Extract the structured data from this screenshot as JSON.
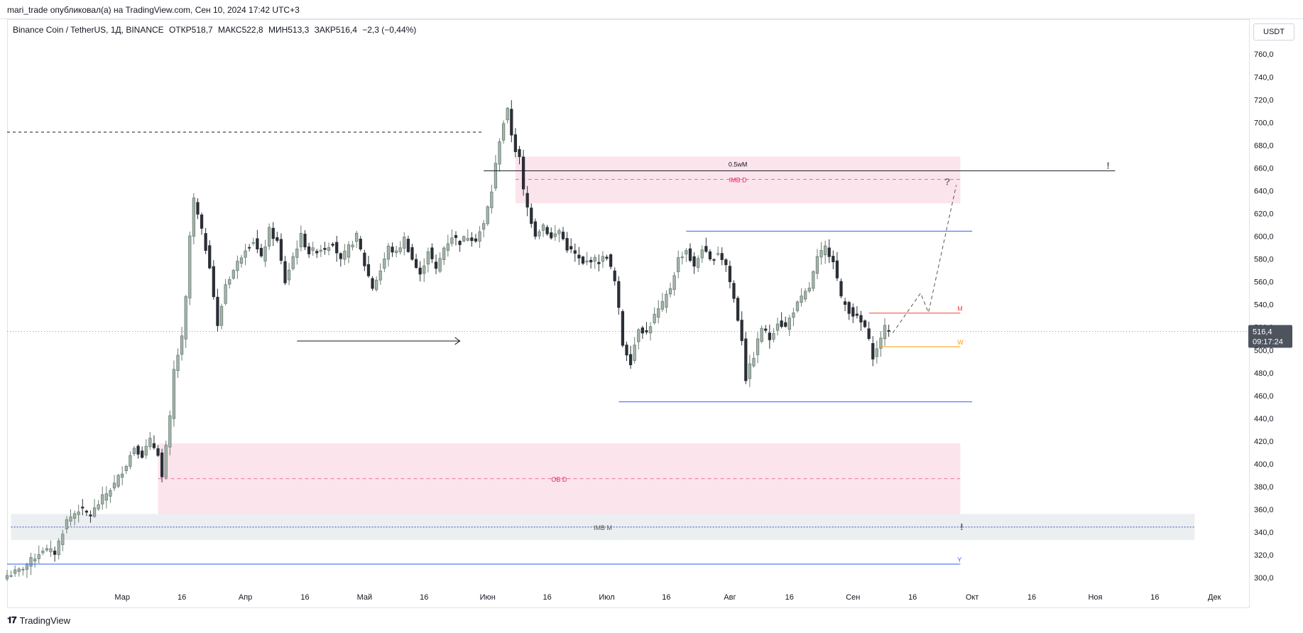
{
  "header": {
    "published": "mari_trade опубликовал(а) на TradingView.com, Сен 10, 2024 17:42 UTC+3"
  },
  "legend": {
    "symbol": "Binance Coin / TetherUS, 1Д, BINANCE",
    "open": "ОТКР518,7",
    "high": "МАКС522,8",
    "low": "МИН513,3",
    "close": "ЗАКР516,4",
    "change": "−2,3 (−0,44%)"
  },
  "currency": "USDT",
  "price_label": {
    "value": "516,4",
    "timer": "09:17:24"
  },
  "footer": {
    "brand": "TradingView",
    "logo": "tradingview-logo"
  },
  "colors": {
    "up": "#6a7d73",
    "down": "#2b2f36",
    "pink_zone": "#fce4ec",
    "pink_text": "#e91e63",
    "grey_zone": "#eceff1",
    "blue_line": "#2962ff",
    "red_line": "#f44336",
    "orange_line": "#ff9800"
  },
  "chart_data": {
    "type": "candlestick",
    "y_axis": {
      "range": [
        292,
        767
      ],
      "ticks": [
        300,
        320,
        340,
        360,
        380,
        400,
        420,
        440,
        460,
        480,
        500,
        520,
        540,
        560,
        580,
        600,
        620,
        640,
        660,
        680,
        700,
        720,
        740,
        760
      ],
      "tick_labels": [
        "300,0",
        "320,0",
        "340,0",
        "360,0",
        "380,0",
        "400,0",
        "420,0",
        "440,0",
        "460,0",
        "480,0",
        "500,0",
        "520,0",
        "540,0",
        "560,0",
        "580,0",
        "600,0",
        "620,0",
        "640,0",
        "660,0",
        "680,0",
        "700,0",
        "720,0",
        "740,0",
        "760,0"
      ]
    },
    "x_axis": {
      "start": "2024-02-01",
      "end": "2024-12-09",
      "ticks": [
        {
          "date": "2024-03-01",
          "label": "Мар"
        },
        {
          "date": "2024-03-16",
          "label": "16"
        },
        {
          "date": "2024-04-01",
          "label": "Апр"
        },
        {
          "date": "2024-04-16",
          "label": "16"
        },
        {
          "date": "2024-05-01",
          "label": "Май"
        },
        {
          "date": "2024-05-16",
          "label": "16"
        },
        {
          "date": "2024-06-01",
          "label": "Июн"
        },
        {
          "date": "2024-06-16",
          "label": "16"
        },
        {
          "date": "2024-07-01",
          "label": "Июл"
        },
        {
          "date": "2024-07-16",
          "label": "16"
        },
        {
          "date": "2024-08-01",
          "label": "Авг"
        },
        {
          "date": "2024-08-16",
          "label": "16"
        },
        {
          "date": "2024-09-01",
          "label": "Сен"
        },
        {
          "date": "2024-09-16",
          "label": "16"
        },
        {
          "date": "2024-10-01",
          "label": "Окт"
        },
        {
          "date": "2024-10-16",
          "label": "16"
        },
        {
          "date": "2024-11-01",
          "label": "Ноя"
        },
        {
          "date": "2024-11-16",
          "label": "16"
        },
        {
          "date": "2024-12-01",
          "label": "Дек"
        }
      ]
    },
    "last_price": 516.4,
    "close_path": [
      [
        "2024-02-01",
        302
      ],
      [
        "2024-02-04",
        306
      ],
      [
        "2024-02-07",
        315
      ],
      [
        "2024-02-10",
        325
      ],
      [
        "2024-02-13",
        322
      ],
      [
        "2024-02-16",
        350
      ],
      [
        "2024-02-19",
        360
      ],
      [
        "2024-02-22",
        355
      ],
      [
        "2024-02-25",
        370
      ],
      [
        "2024-02-28",
        382
      ],
      [
        "2024-03-02",
        400
      ],
      [
        "2024-03-04",
        415
      ],
      [
        "2024-03-06",
        408
      ],
      [
        "2024-03-08",
        420
      ],
      [
        "2024-03-10",
        410
      ],
      [
        "2024-03-11",
        388
      ],
      [
        "2024-03-13",
        440
      ],
      [
        "2024-03-14",
        482
      ],
      [
        "2024-03-16",
        510
      ],
      [
        "2024-03-17",
        545
      ],
      [
        "2024-03-18",
        600
      ],
      [
        "2024-03-19",
        632
      ],
      [
        "2024-03-21",
        604
      ],
      [
        "2024-03-23",
        575
      ],
      [
        "2024-03-25",
        520
      ],
      [
        "2024-03-27",
        558
      ],
      [
        "2024-03-29",
        570
      ],
      [
        "2024-04-01",
        590
      ],
      [
        "2024-04-03",
        596
      ],
      [
        "2024-04-05",
        580
      ],
      [
        "2024-04-07",
        605
      ],
      [
        "2024-04-09",
        595
      ],
      [
        "2024-04-11",
        560
      ],
      [
        "2024-04-13",
        582
      ],
      [
        "2024-04-15",
        600
      ],
      [
        "2024-04-17",
        586
      ],
      [
        "2024-04-19",
        588
      ],
      [
        "2024-04-21",
        590
      ],
      [
        "2024-04-23",
        595
      ],
      [
        "2024-04-25",
        578
      ],
      [
        "2024-04-27",
        590
      ],
      [
        "2024-04-29",
        600
      ],
      [
        "2024-05-01",
        575
      ],
      [
        "2024-05-03",
        555
      ],
      [
        "2024-05-05",
        570
      ],
      [
        "2024-05-07",
        590
      ],
      [
        "2024-05-09",
        585
      ],
      [
        "2024-05-11",
        598
      ],
      [
        "2024-05-13",
        580
      ],
      [
        "2024-05-15",
        565
      ],
      [
        "2024-05-17",
        588
      ],
      [
        "2024-05-19",
        570
      ],
      [
        "2024-05-21",
        590
      ],
      [
        "2024-05-23",
        600
      ],
      [
        "2024-05-25",
        595
      ],
      [
        "2024-05-27",
        600
      ],
      [
        "2024-05-29",
        598
      ],
      [
        "2024-05-31",
        610
      ],
      [
        "2024-06-02",
        640
      ],
      [
        "2024-06-04",
        685
      ],
      [
        "2024-06-05",
        700
      ],
      [
        "2024-06-06",
        710
      ],
      [
        "2024-06-07",
        690
      ],
      [
        "2024-06-08",
        676
      ],
      [
        "2024-06-09",
        668
      ],
      [
        "2024-06-10",
        640
      ],
      [
        "2024-06-11",
        625
      ],
      [
        "2024-06-13",
        602
      ],
      [
        "2024-06-15",
        610
      ],
      [
        "2024-06-17",
        598
      ],
      [
        "2024-06-19",
        605
      ],
      [
        "2024-06-21",
        590
      ],
      [
        "2024-06-23",
        584
      ],
      [
        "2024-06-25",
        575
      ],
      [
        "2024-06-27",
        580
      ],
      [
        "2024-06-29",
        578
      ],
      [
        "2024-07-01",
        583
      ],
      [
        "2024-07-03",
        560
      ],
      [
        "2024-07-04",
        535
      ],
      [
        "2024-07-05",
        505
      ],
      [
        "2024-07-07",
        490
      ],
      [
        "2024-07-09",
        520
      ],
      [
        "2024-07-11",
        515
      ],
      [
        "2024-07-13",
        530
      ],
      [
        "2024-07-15",
        540
      ],
      [
        "2024-07-17",
        555
      ],
      [
        "2024-07-19",
        580
      ],
      [
        "2024-07-21",
        588
      ],
      [
        "2024-07-23",
        572
      ],
      [
        "2024-07-25",
        590
      ],
      [
        "2024-07-27",
        578
      ],
      [
        "2024-07-29",
        586
      ],
      [
        "2024-07-31",
        575
      ],
      [
        "2024-08-02",
        545
      ],
      [
        "2024-08-04",
        510
      ],
      [
        "2024-08-05",
        475
      ],
      [
        "2024-08-07",
        495
      ],
      [
        "2024-08-09",
        520
      ],
      [
        "2024-08-11",
        510
      ],
      [
        "2024-08-13",
        525
      ],
      [
        "2024-08-15",
        520
      ],
      [
        "2024-08-17",
        535
      ],
      [
        "2024-08-19",
        545
      ],
      [
        "2024-08-21",
        555
      ],
      [
        "2024-08-23",
        580
      ],
      [
        "2024-08-25",
        590
      ],
      [
        "2024-08-27",
        580
      ],
      [
        "2024-08-29",
        545
      ],
      [
        "2024-08-31",
        535
      ],
      [
        "2024-09-02",
        528
      ],
      [
        "2024-09-04",
        520
      ],
      [
        "2024-09-06",
        495
      ],
      [
        "2024-09-07",
        500
      ],
      [
        "2024-09-08",
        512
      ],
      [
        "2024-09-09",
        519
      ],
      [
        "2024-09-10",
        516
      ]
    ],
    "annotations": {
      "y_line_dashed": {
        "y": 691.5,
        "from": "2024-02-01",
        "to": "2024-05-31"
      },
      "imb_d_zone": {
        "y_from": 629,
        "y_to": 670,
        "mid": 650,
        "from": "2024-06-08",
        "to": "2024-09-28",
        "label": "IMB D"
      },
      "half_wm_line": {
        "y": 657.5,
        "from": "2024-05-31",
        "to": "2024-11-06",
        "label": "0.5wM",
        "mark": "!"
      },
      "upper_blue": {
        "y": 604.5,
        "from": "2024-07-21",
        "to": "2024-10-01"
      },
      "lower_blue": {
        "y": 454.5,
        "from": "2024-07-04",
        "to": "2024-10-01"
      },
      "ob_d_zone": {
        "y_from": 356,
        "y_to": 418,
        "mid": 387,
        "from": "2024-03-10",
        "to": "2024-09-28",
        "label": "OB D"
      },
      "imb_m_zone": {
        "y_from": 333,
        "y_to": 356,
        "mid": 344.5,
        "from": "2024-02-02",
        "to": "2024-11-26",
        "label": "IMB M",
        "mark": "!"
      },
      "y_line": {
        "y": 312,
        "from": "2024-02-01",
        "to": "2024-09-28",
        "label": "Y"
      },
      "m_line": {
        "y": 532.5,
        "from": "2024-09-05",
        "to": "2024-09-28",
        "label": "M"
      },
      "w_line": {
        "y": 503,
        "from": "2024-09-08",
        "to": "2024-09-28",
        "label": "W"
      },
      "arrow": {
        "y": 508,
        "from": "2024-04-14",
        "to": "2024-05-25"
      },
      "question_mark": {
        "label": "?",
        "date": "2024-09-24",
        "y": 645
      },
      "projection": [
        [
          "2024-09-11",
          515
        ],
        [
          "2024-09-18",
          550
        ],
        [
          "2024-09-20",
          533
        ],
        [
          "2024-09-27",
          645
        ]
      ]
    }
  }
}
